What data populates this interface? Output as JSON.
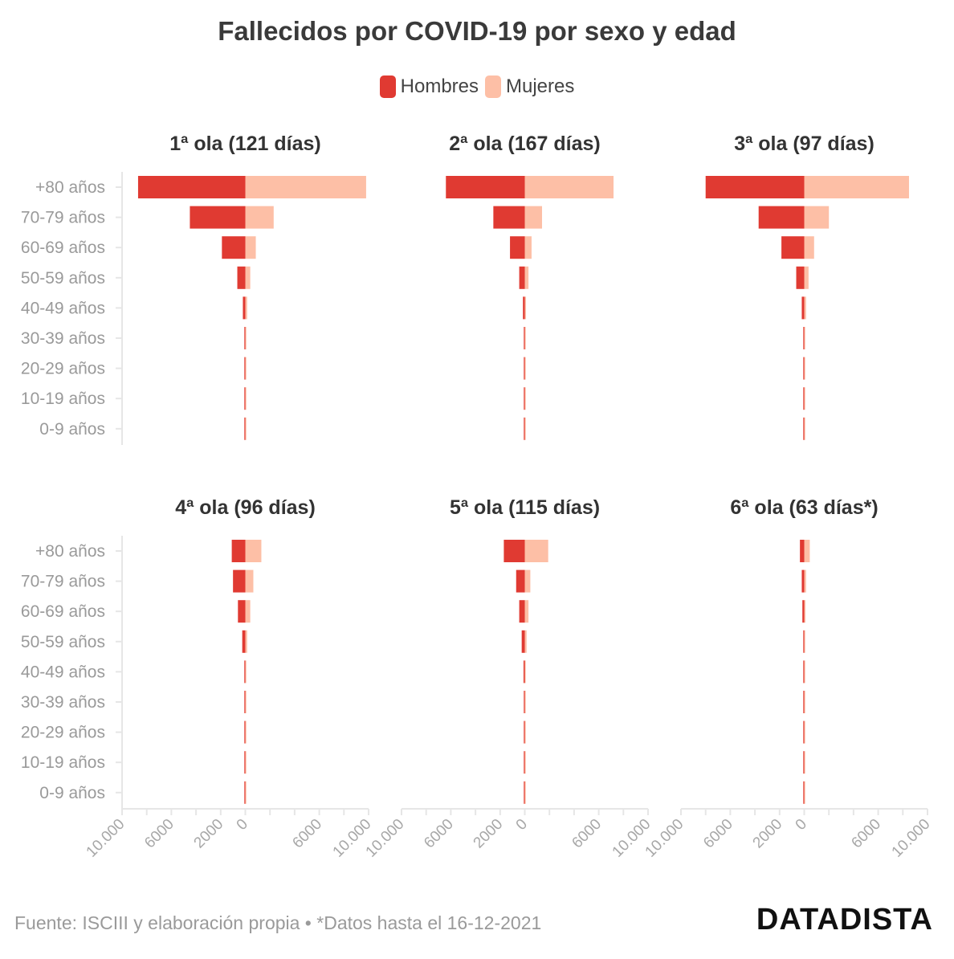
{
  "title": "Fallecidos por COVID-19 por sexo y edad",
  "legend": [
    {
      "label": "Hombres",
      "color": "#e03a32"
    },
    {
      "label": "Mujeres",
      "color": "#fdbfa6"
    }
  ],
  "source": "Fuente: ISCIII y elaboración propia • *Datos hasta el 16-12-2021",
  "brand": "DATADISTA",
  "chart_data": {
    "type": "bar",
    "orientation": "horizontal-population-pyramid",
    "categories": [
      "+80 años",
      "70-79 años",
      "60-69 años",
      "50-59 años",
      "40-49 años",
      "30-39 años",
      "20-29 años",
      "10-19 años",
      "0-9 años"
    ],
    "xlim": [
      -10000,
      10000
    ],
    "xticks": [
      -10000,
      -6000,
      -2000,
      0,
      6000,
      10000
    ],
    "xtick_labels": [
      "10.000",
      "6000",
      "2000",
      "0",
      "6000",
      "10.000"
    ],
    "panels": [
      {
        "title": "1ª ola (121 días)",
        "series": [
          {
            "name": "Hombres",
            "values": [
              8700,
              4500,
              1900,
              650,
              200,
              50,
              20,
              5,
              5
            ]
          },
          {
            "name": "Mujeres",
            "values": [
              9800,
              2300,
              850,
              400,
              150,
              40,
              15,
              5,
              5
            ]
          }
        ]
      },
      {
        "title": "2ª ola (167 días)",
        "series": [
          {
            "name": "Hombres",
            "values": [
              6400,
              2550,
              1200,
              450,
              150,
              30,
              10,
              5,
              5
            ]
          },
          {
            "name": "Mujeres",
            "values": [
              7200,
              1400,
              550,
              300,
              100,
              25,
              10,
              5,
              5
            ]
          }
        ]
      },
      {
        "title": "3ª ola (97 días)",
        "series": [
          {
            "name": "Hombres",
            "values": [
              8000,
              3700,
              1850,
              650,
              200,
              40,
              15,
              5,
              5
            ]
          },
          {
            "name": "Mujeres",
            "values": [
              8500,
              2000,
              800,
              350,
              150,
              30,
              10,
              5,
              5
            ]
          }
        ]
      },
      {
        "title": "4ª ola (96 días)",
        "series": [
          {
            "name": "Hombres",
            "values": [
              1100,
              1000,
              600,
              250,
              80,
              20,
              10,
              5,
              5
            ]
          },
          {
            "name": "Mujeres",
            "values": [
              1300,
              650,
              400,
              150,
              60,
              15,
              5,
              5,
              5
            ]
          }
        ]
      },
      {
        "title": "5ª ola (115 días)",
        "series": [
          {
            "name": "Hombres",
            "values": [
              1700,
              700,
              450,
              250,
              100,
              30,
              10,
              5,
              5
            ]
          },
          {
            "name": "Mujeres",
            "values": [
              1900,
              450,
              300,
              150,
              60,
              20,
              10,
              5,
              5
            ]
          }
        ]
      },
      {
        "title": "6ª ola (63 días*)",
        "series": [
          {
            "name": "Hombres",
            "values": [
              350,
              200,
              150,
              50,
              20,
              5,
              5,
              5,
              5
            ]
          },
          {
            "name": "Mujeres",
            "values": [
              450,
              150,
              100,
              50,
              20,
              5,
              5,
              5,
              5
            ]
          }
        ]
      }
    ]
  }
}
